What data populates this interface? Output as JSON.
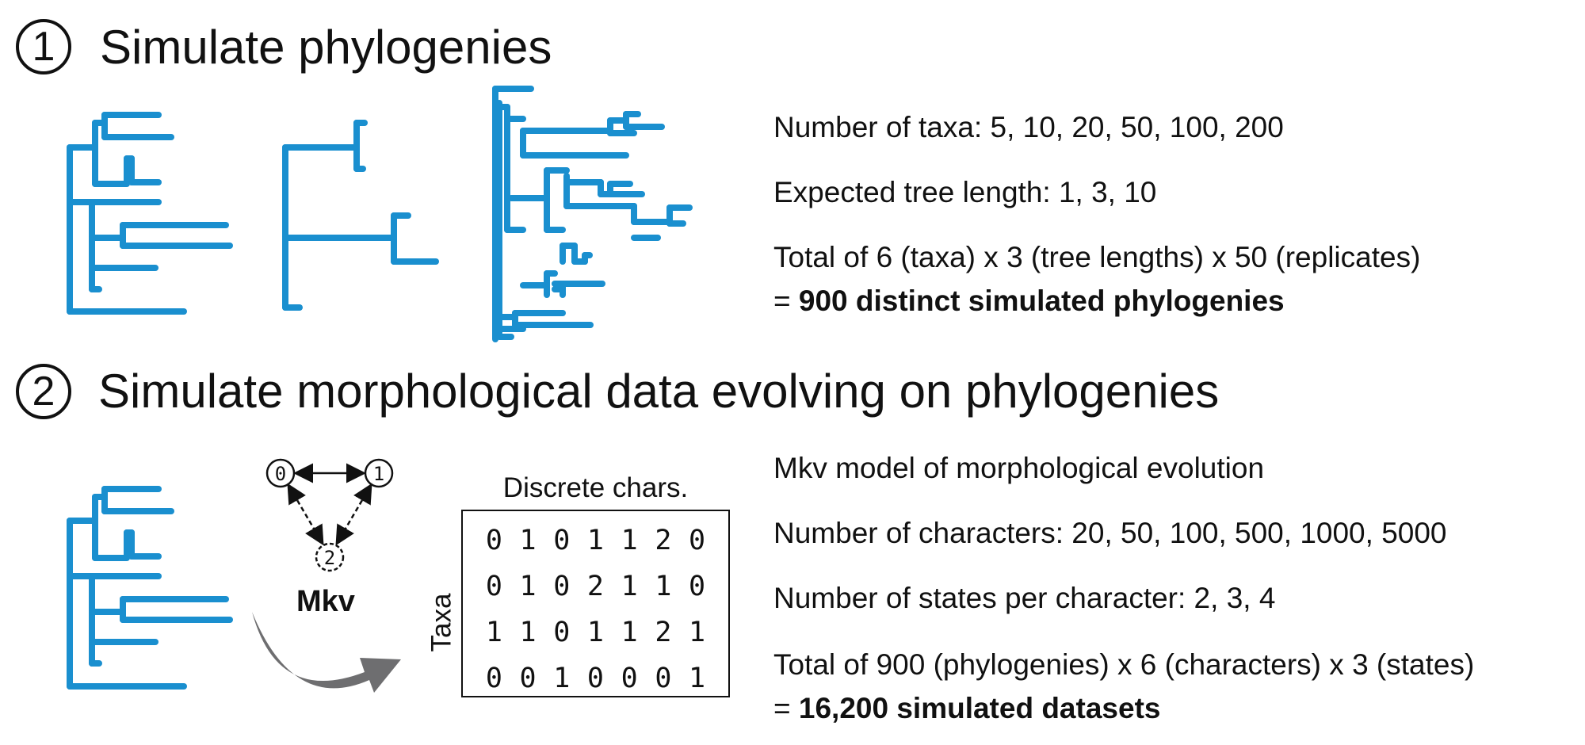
{
  "step1": {
    "number": "1",
    "title": "Simulate phylogenies",
    "info_taxa": "Number of taxa: 5, 10, 20, 50, 100, 200",
    "info_length": "Expected tree length: 1, 3, 10",
    "info_total_line1": "Total of 6 (taxa) x 3 (tree lengths) x 50 (replicates)",
    "info_total_prefix": "= ",
    "info_total_bold": "900 distinct simulated phylogenies"
  },
  "step2": {
    "number": "2",
    "title": "Simulate morphological data evolving on phylogenies",
    "info_model": "Mkv model of morphological evolution",
    "info_chars": "Number of characters: 20, 50, 100, 500, 1000, 5000",
    "info_states": "Number of states per character: 2, 3, 4",
    "info_total_line1": "Total of 900 (phylogenies) x 6 (characters) x 3 (states)",
    "info_total_prefix": "= ",
    "info_total_bold": "16,200 simulated datasets"
  },
  "model": {
    "label": "Mkv",
    "states": [
      "0",
      "1",
      "2"
    ]
  },
  "matrix": {
    "header": "Discrete chars.",
    "row_label": "Taxa",
    "rows": [
      "0 1 0 1 1 2 0",
      "0 1 0 2 1 1 0",
      "1 1 0 1 1 2 1",
      "0 0 1 0 0 0 1"
    ]
  },
  "colors": {
    "tree": "#1a8fcf",
    "arrow": "#6e6e70",
    "text": "#111111"
  }
}
